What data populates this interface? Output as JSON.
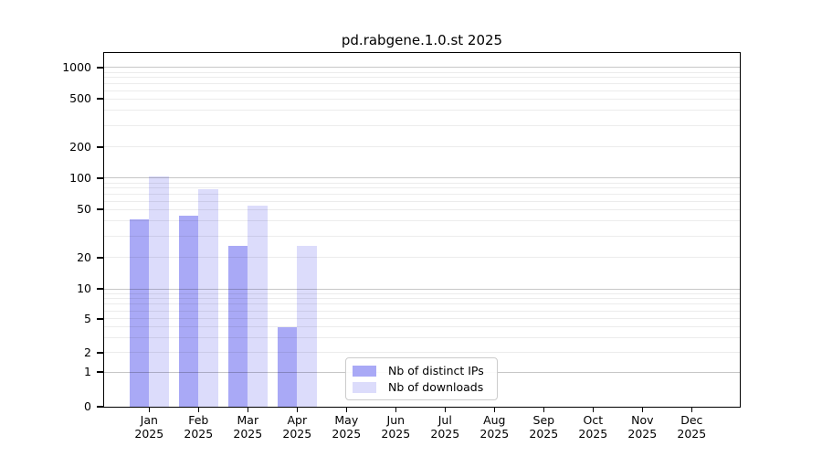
{
  "chart_data": {
    "type": "bar",
    "title": "pd.rabgene.1.0.st 2025",
    "categories": [
      {
        "month": "Jan",
        "year": "2025"
      },
      {
        "month": "Feb",
        "year": "2025"
      },
      {
        "month": "Mar",
        "year": "2025"
      },
      {
        "month": "Apr",
        "year": "2025"
      },
      {
        "month": "May",
        "year": "2025"
      },
      {
        "month": "Jun",
        "year": "2025"
      },
      {
        "month": "Jul",
        "year": "2025"
      },
      {
        "month": "Aug",
        "year": "2025"
      },
      {
        "month": "Sep",
        "year": "2025"
      },
      {
        "month": "Oct",
        "year": "2025"
      },
      {
        "month": "Nov",
        "year": "2025"
      },
      {
        "month": "Dec",
        "year": "2025"
      }
    ],
    "series": [
      {
        "name": "Nb of distinct IPs",
        "color": "#a9a9f6",
        "values": [
          41,
          44,
          25,
          4,
          null,
          null,
          null,
          null,
          null,
          null,
          null,
          null
        ]
      },
      {
        "name": "Nb of downloads",
        "color": "#dcdcfb",
        "values": [
          104,
          78,
          54,
          25,
          null,
          null,
          null,
          null,
          null,
          null,
          null,
          null
        ]
      }
    ],
    "yticks": [
      0,
      1,
      2,
      5,
      10,
      20,
      50,
      100,
      200,
      500,
      1000
    ],
    "xlabel": "",
    "ylabel": "",
    "yscale": "log-like with 0 baseline",
    "ylim": [
      0,
      1300
    ],
    "grid": true,
    "legend_position": "lower center"
  }
}
